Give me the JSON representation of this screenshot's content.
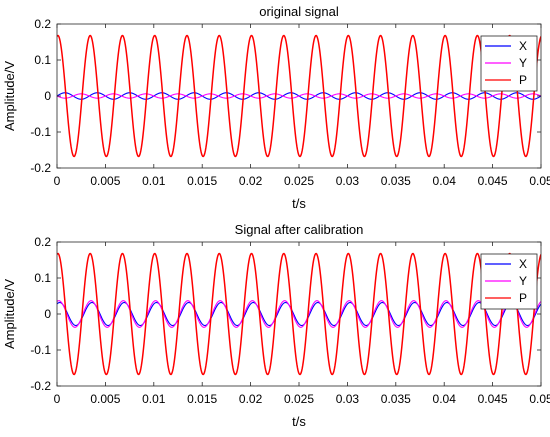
{
  "chart_data": [
    {
      "type": "line",
      "title": "original signal",
      "xlabel": "t/s",
      "ylabel": "Amplitude/V",
      "xlim": [
        0,
        0.05
      ],
      "ylim": [
        -0.2,
        0.2
      ],
      "xticks": [
        "0",
        "0.005",
        "0.01",
        "0.015",
        "0.02",
        "0.025",
        "0.03",
        "0.035",
        "0.04",
        "0.045",
        "0.05"
      ],
      "yticks": [
        "-0.2",
        "-0.1",
        "0",
        "0.1",
        "0.2"
      ],
      "grid": false,
      "legend": "top-right",
      "series": [
        {
          "name": "X",
          "color": "#0000ff",
          "amplitude": 0.009,
          "frequency_hz": 300,
          "phase_deg": 0
        },
        {
          "name": "Y",
          "color": "#ff00ff",
          "amplitude": 0.006,
          "frequency_hz": 300,
          "phase_deg": 180
        },
        {
          "name": "P",
          "color": "#ff0000",
          "amplitude": 0.168,
          "frequency_hz": 300,
          "phase_deg": 80
        }
      ]
    },
    {
      "type": "line",
      "title": "Signal after calibration",
      "xlabel": "t/s",
      "ylabel": "Amplitude/V",
      "xlim": [
        0,
        0.05
      ],
      "ylim": [
        -0.2,
        0.2
      ],
      "xticks": [
        "0",
        "0.005",
        "0.01",
        "0.015",
        "0.02",
        "0.025",
        "0.03",
        "0.035",
        "0.04",
        "0.045",
        "0.05"
      ],
      "yticks": [
        "-0.2",
        "-0.1",
        "0",
        "0.1",
        "0.2"
      ],
      "grid": false,
      "legend": "top-right",
      "series": [
        {
          "name": "X",
          "color": "#0000ff",
          "amplitude": 0.032,
          "frequency_hz": 300,
          "phase_deg": 60
        },
        {
          "name": "Y",
          "color": "#ff00ff",
          "amplitude": 0.037,
          "frequency_hz": 300,
          "phase_deg": 70
        },
        {
          "name": "P",
          "color": "#ff0000",
          "amplitude": 0.168,
          "frequency_hz": 300,
          "phase_deg": 80
        }
      ]
    }
  ]
}
